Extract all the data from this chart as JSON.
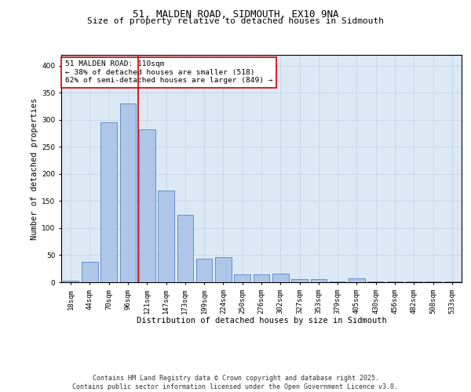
{
  "title": "51, MALDEN ROAD, SIDMOUTH, EX10 9NA",
  "subtitle": "Size of property relative to detached houses in Sidmouth",
  "xlabel": "Distribution of detached houses by size in Sidmouth",
  "ylabel": "Number of detached properties",
  "categories": [
    "18sqm",
    "44sqm",
    "70sqm",
    "96sqm",
    "121sqm",
    "147sqm",
    "173sqm",
    "199sqm",
    "224sqm",
    "250sqm",
    "276sqm",
    "302sqm",
    "327sqm",
    "353sqm",
    "379sqm",
    "405sqm",
    "430sqm",
    "456sqm",
    "482sqm",
    "508sqm",
    "533sqm"
  ],
  "values": [
    3,
    38,
    295,
    330,
    283,
    170,
    124,
    43,
    46,
    15,
    15,
    16,
    6,
    6,
    1,
    7,
    1,
    2,
    1,
    1,
    1
  ],
  "bar_color": "#aec6e8",
  "bar_edge_color": "#4472c4",
  "grid_color": "#c8d8e8",
  "background_color": "#dce9f5",
  "annotation_box_text": "51 MALDEN ROAD: 110sqm\n← 38% of detached houses are smaller (518)\n62% of semi-detached houses are larger (849) →",
  "annotation_box_color": "#ffffff",
  "annotation_box_edge_color": "#cc0000",
  "vline_color": "#cc0000",
  "ylim": [
    0,
    420
  ],
  "yticks": [
    0,
    50,
    100,
    150,
    200,
    250,
    300,
    350,
    400
  ],
  "footer_text": "Contains HM Land Registry data © Crown copyright and database right 2025.\nContains public sector information licensed under the Open Government Licence v3.0.",
  "title_fontsize": 9,
  "subtitle_fontsize": 8,
  "axis_label_fontsize": 7.5,
  "tick_fontsize": 6.5,
  "annotation_fontsize": 6.8,
  "footer_fontsize": 6
}
